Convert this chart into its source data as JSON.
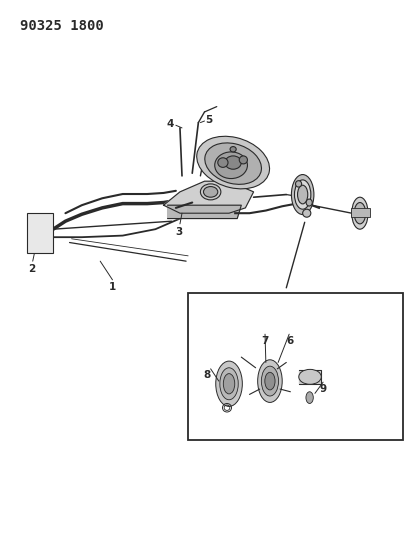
{
  "title": "90325 1800",
  "title_fontsize": 10,
  "title_fontweight": "bold",
  "background_color": "#ffffff",
  "line_color": "#2a2a2a",
  "label_fontsize": 7.5,
  "fig_width": 4.09,
  "fig_height": 5.33,
  "dpi": 100
}
